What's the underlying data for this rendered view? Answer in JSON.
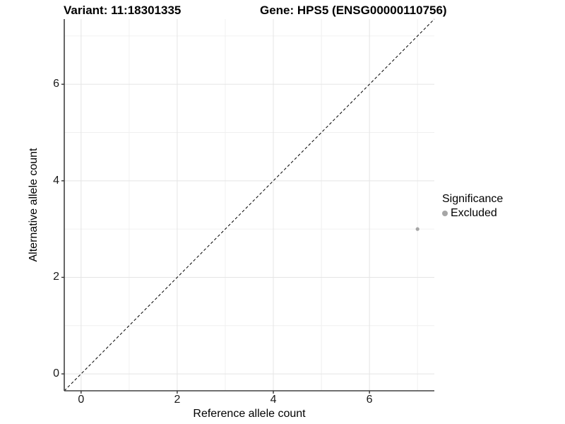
{
  "chart_data": {
    "type": "scatter",
    "title_left": "Variant: 11:18301335",
    "title_right": "Gene: HPS5 (ENSG00000110756)",
    "xlabel": "Reference allele count",
    "ylabel": "Alternative allele count",
    "xlim": [
      -0.35,
      7.35
    ],
    "ylim": [
      -0.35,
      7.35
    ],
    "xticks": [
      0,
      2,
      4,
      6
    ],
    "yticks": [
      0,
      2,
      4,
      6
    ],
    "minor_xticks": [
      1,
      3,
      5,
      7
    ],
    "minor_yticks": [
      1,
      3,
      5,
      7
    ],
    "grid": true,
    "legend_position": "right",
    "reference_line": {
      "slope": 1,
      "intercept": 0,
      "style": "dashed",
      "color": "#000000"
    },
    "legend": {
      "title": "Significance",
      "items": [
        {
          "label": "Excluded",
          "color": "#a6a6a6"
        }
      ]
    },
    "series": [
      {
        "name": "Excluded",
        "color": "#a6a6a6",
        "points": [
          {
            "x": 7,
            "y": 3
          }
        ]
      }
    ],
    "colors": {
      "background": "#ffffff",
      "axis_line": "#404040",
      "tick_mark": "#333333",
      "grid_major": "#e5e5e5",
      "grid_minor": "#f0f0f0",
      "point": "#a6a6a6"
    }
  }
}
